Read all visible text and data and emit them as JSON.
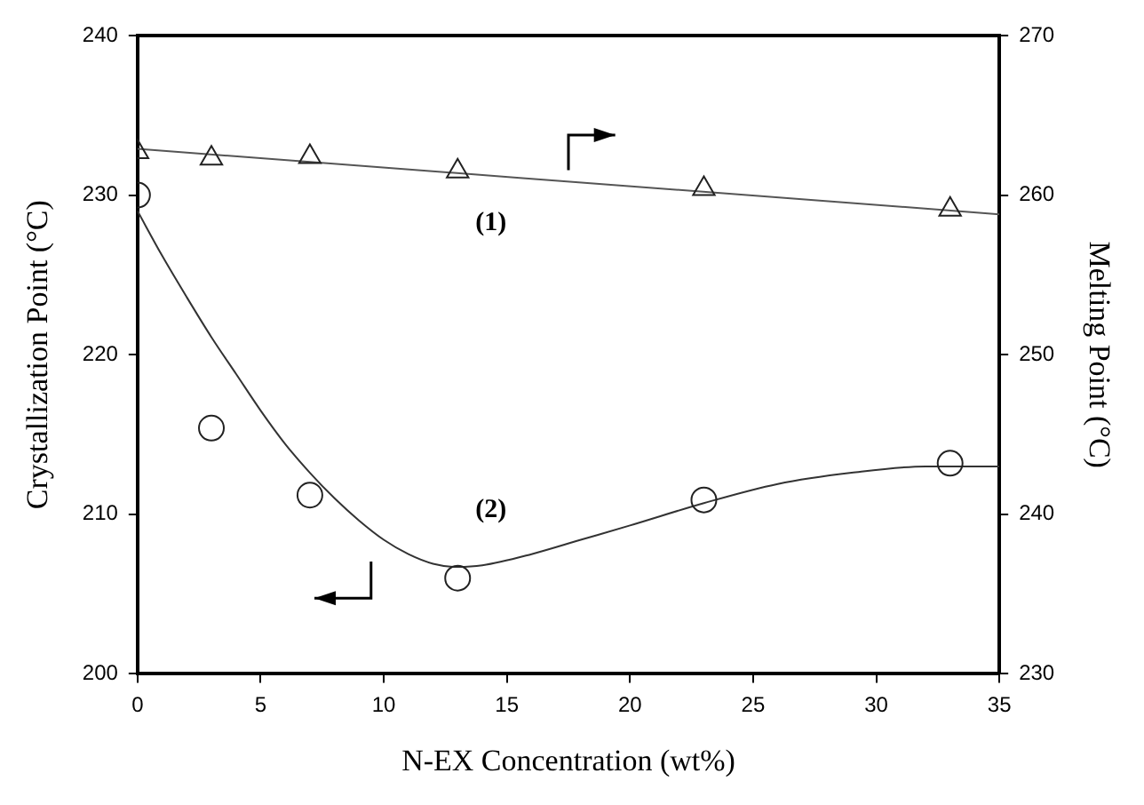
{
  "chart_data": {
    "type": "scatter",
    "xlabel": "N-EX Concentration (wt%)",
    "ylabel": "Crystallization Point (°C)",
    "y2label": "Melting Point (°C)",
    "xlim": [
      0,
      35
    ],
    "xticks": [
      0,
      5,
      10,
      15,
      20,
      25,
      30,
      35
    ],
    "ylim": [
      200,
      240
    ],
    "yticks": [
      200,
      210,
      220,
      230,
      240
    ],
    "y2lim": [
      230,
      270
    ],
    "y2ticks": [
      230,
      240,
      250,
      260,
      270
    ],
    "grid": false,
    "legend": false,
    "series": [
      {
        "axis": "y2",
        "marker": "triangle",
        "color": "#222222",
        "x": [
          0,
          3,
          7,
          13,
          23,
          33
        ],
        "values": [
          262.7,
          262.3,
          262.4,
          261.5,
          260.4,
          259.1
        ]
      },
      {
        "type": "line",
        "name": "(1)",
        "axis": "y2",
        "marker": "none",
        "color": "#555555",
        "x": [
          0,
          35
        ],
        "values": [
          262.9,
          258.8
        ]
      },
      {
        "marker": "circle",
        "color": "#222222",
        "x": [
          0,
          3,
          7,
          13,
          23,
          33
        ],
        "values": [
          230,
          215.4,
          211.2,
          206,
          210.9,
          213.2
        ]
      },
      {
        "type": "line",
        "name": "(2)",
        "marker": "none",
        "color": "#333333",
        "x": [
          0,
          1,
          2,
          3,
          4,
          5,
          6,
          7,
          8,
          9,
          10,
          11,
          12,
          13,
          14,
          16,
          18,
          20,
          23,
          26,
          29,
          32,
          35
        ],
        "values": [
          229,
          226.2,
          223.6,
          221.1,
          218.8,
          216.5,
          214.4,
          212.6,
          211,
          209.6,
          208.4,
          207.5,
          206.9,
          206.7,
          206.8,
          207.5,
          208.4,
          209.3,
          210.7,
          211.9,
          212.6,
          213,
          213
        ]
      }
    ]
  }
}
